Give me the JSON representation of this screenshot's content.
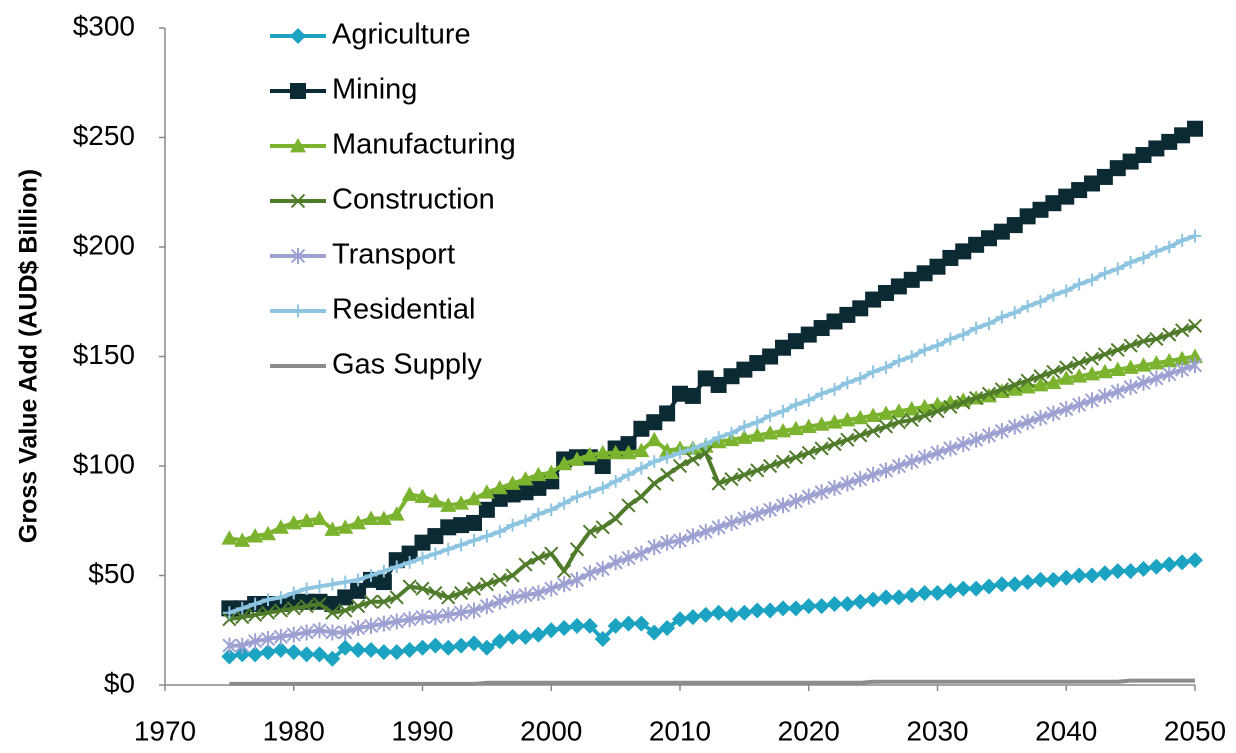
{
  "chart_data": {
    "type": "line",
    "ylabel": "Gross Value  Add (AUD$ Billion)",
    "x": [
      1975,
      1976,
      1977,
      1978,
      1979,
      1980,
      1981,
      1982,
      1983,
      1984,
      1985,
      1986,
      1987,
      1988,
      1989,
      1990,
      1991,
      1992,
      1993,
      1994,
      1995,
      1996,
      1997,
      1998,
      1999,
      2000,
      2001,
      2002,
      2003,
      2004,
      2005,
      2006,
      2007,
      2008,
      2009,
      2010,
      2011,
      2012,
      2013,
      2014,
      2015,
      2016,
      2017,
      2018,
      2019,
      2020,
      2021,
      2022,
      2023,
      2024,
      2025,
      2026,
      2027,
      2028,
      2029,
      2030,
      2031,
      2032,
      2033,
      2034,
      2035,
      2036,
      2037,
      2038,
      2039,
      2040,
      2041,
      2042,
      2043,
      2044,
      2045,
      2046,
      2047,
      2048,
      2049,
      2050
    ],
    "series": [
      {
        "name": "Agriculture",
        "color": "#1ba3c1",
        "marker": "diamond",
        "values": [
          13,
          14,
          14,
          15,
          16,
          15,
          14,
          14,
          12,
          17,
          16,
          16,
          15,
          15,
          16,
          17,
          18,
          17,
          18,
          19,
          17,
          20,
          22,
          22,
          23,
          25,
          26,
          27,
          27,
          21,
          27,
          28,
          28,
          24,
          26,
          30,
          31,
          32,
          33,
          32,
          33,
          34,
          34,
          35,
          35,
          36,
          36,
          37,
          37,
          38,
          39,
          40,
          40,
          41,
          42,
          42,
          43,
          44,
          44,
          45,
          46,
          46,
          47,
          48,
          48,
          49,
          50,
          50,
          51,
          52,
          52,
          53,
          54,
          55,
          56,
          57
        ]
      },
      {
        "name": "Mining",
        "color": "#0c2a33",
        "marker": "square",
        "values": [
          35,
          35,
          37,
          37,
          37,
          38,
          38,
          38,
          37,
          40,
          43,
          48,
          47,
          57,
          60,
          65,
          68,
          72,
          73,
          74,
          80,
          85,
          87,
          88,
          90,
          93,
          103,
          104,
          104,
          100,
          108,
          110,
          117,
          120,
          124,
          133,
          132,
          140,
          137,
          141,
          144,
          147,
          150,
          154,
          157,
          160,
          163,
          166,
          169,
          172,
          176,
          179,
          182,
          185,
          188,
          191,
          195,
          198,
          201,
          204,
          207,
          210,
          214,
          217,
          220,
          223,
          226,
          229,
          232,
          236,
          239,
          242,
          245,
          248,
          251,
          254
        ]
      },
      {
        "name": "Manufacturing",
        "color": "#7bb32e",
        "marker": "triangle",
        "values": [
          67,
          66,
          68,
          69,
          72,
          74,
          75,
          76,
          71,
          72,
          74,
          76,
          76,
          78,
          87,
          86,
          84,
          82,
          83,
          85,
          88,
          90,
          92,
          94,
          96,
          97,
          101,
          103,
          105,
          106,
          106,
          106,
          107,
          112,
          107,
          108,
          108,
          109,
          111,
          112,
          113,
          114,
          115,
          116,
          117,
          118,
          119,
          120,
          121,
          122,
          123,
          124,
          125,
          126,
          127,
          128,
          129,
          130,
          131,
          132,
          134,
          135,
          136,
          137,
          138,
          140,
          141,
          142,
          143,
          144,
          145,
          146,
          147,
          148,
          149,
          150
        ]
      },
      {
        "name": "Construction",
        "color": "#4f7b2b",
        "marker": "cross",
        "values": [
          30,
          31,
          32,
          33,
          34,
          35,
          36,
          37,
          33,
          34,
          36,
          38,
          38,
          40,
          45,
          44,
          42,
          40,
          42,
          44,
          46,
          48,
          50,
          55,
          58,
          60,
          52,
          62,
          70,
          72,
          76,
          82,
          86,
          92,
          96,
          100,
          103,
          106,
          92,
          94,
          96,
          98,
          100,
          102,
          104,
          106,
          108,
          110,
          112,
          114,
          116,
          118,
          120,
          121,
          123,
          125,
          127,
          129,
          131,
          133,
          135,
          137,
          139,
          141,
          143,
          145,
          147,
          149,
          151,
          153,
          155,
          157,
          158,
          160,
          162,
          164
        ]
      },
      {
        "name": "Transport",
        "color": "#9da1d2",
        "marker": "star",
        "values": [
          18,
          18,
          20,
          21,
          22,
          23,
          24,
          25,
          24,
          24,
          26,
          27,
          28,
          29,
          30,
          31,
          31,
          32,
          33,
          34,
          36,
          38,
          40,
          41,
          42,
          44,
          46,
          48,
          51,
          53,
          56,
          58,
          60,
          63,
          65,
          66,
          68,
          70,
          72,
          74,
          76,
          78,
          80,
          82,
          84,
          86,
          88,
          90,
          92,
          94,
          96,
          98,
          100,
          102,
          104,
          106,
          108,
          110,
          112,
          114,
          116,
          118,
          120,
          122,
          124,
          126,
          128,
          130,
          132,
          134,
          136,
          138,
          140,
          142,
          144,
          146
        ]
      },
      {
        "name": "Residential",
        "color": "#8dc5e1",
        "marker": "plus",
        "values": [
          33,
          35,
          37,
          39,
          40,
          42,
          44,
          45,
          46,
          47,
          48,
          50,
          52,
          54,
          56,
          58,
          60,
          62,
          64,
          66,
          68,
          70,
          73,
          75,
          78,
          80,
          83,
          86,
          88,
          90,
          93,
          96,
          99,
          102,
          104,
          106,
          108,
          110,
          113,
          115,
          118,
          120,
          123,
          125,
          128,
          130,
          133,
          135,
          138,
          140,
          143,
          145,
          148,
          150,
          153,
          155,
          158,
          160,
          163,
          165,
          168,
          170,
          173,
          175,
          178,
          180,
          183,
          185,
          188,
          190,
          193,
          195,
          198,
          200,
          203,
          205
        ]
      },
      {
        "name": "Gas Supply",
        "color": "#8c8c8c",
        "marker": "none",
        "values": [
          0.5,
          0.5,
          0.5,
          0.5,
          0.5,
          0.5,
          0.5,
          0.5,
          0.5,
          0.5,
          0.5,
          0.5,
          0.5,
          0.5,
          0.5,
          0.5,
          0.5,
          0.5,
          0.5,
          0.5,
          1,
          1,
          1,
          1,
          1,
          1,
          1,
          1,
          1,
          1,
          1,
          1,
          1,
          1,
          1,
          1,
          1,
          1,
          1,
          1,
          1,
          1,
          1,
          1,
          1,
          1,
          1,
          1,
          1,
          1,
          1.5,
          1.5,
          1.5,
          1.5,
          1.5,
          1.5,
          1.5,
          1.5,
          1.5,
          1.5,
          1.5,
          1.5,
          1.5,
          1.5,
          1.5,
          1.5,
          1.5,
          1.5,
          1.5,
          1.5,
          2,
          2,
          2,
          2,
          2,
          2
        ]
      }
    ],
    "xlim": [
      1970,
      2050
    ],
    "xticks": [
      1970,
      1980,
      1990,
      2000,
      2010,
      2020,
      2030,
      2040,
      2050
    ],
    "ylim": [
      0,
      300
    ],
    "yticks": [
      {
        "value": 0,
        "label": "$0"
      },
      {
        "value": 50,
        "label": "$50"
      },
      {
        "value": 100,
        "label": "$100"
      },
      {
        "value": 150,
        "label": "$150"
      },
      {
        "value": 200,
        "label": "$200"
      },
      {
        "value": 250,
        "label": "$250"
      },
      {
        "value": 300,
        "label": "$300"
      }
    ],
    "legend": "top-left"
  }
}
